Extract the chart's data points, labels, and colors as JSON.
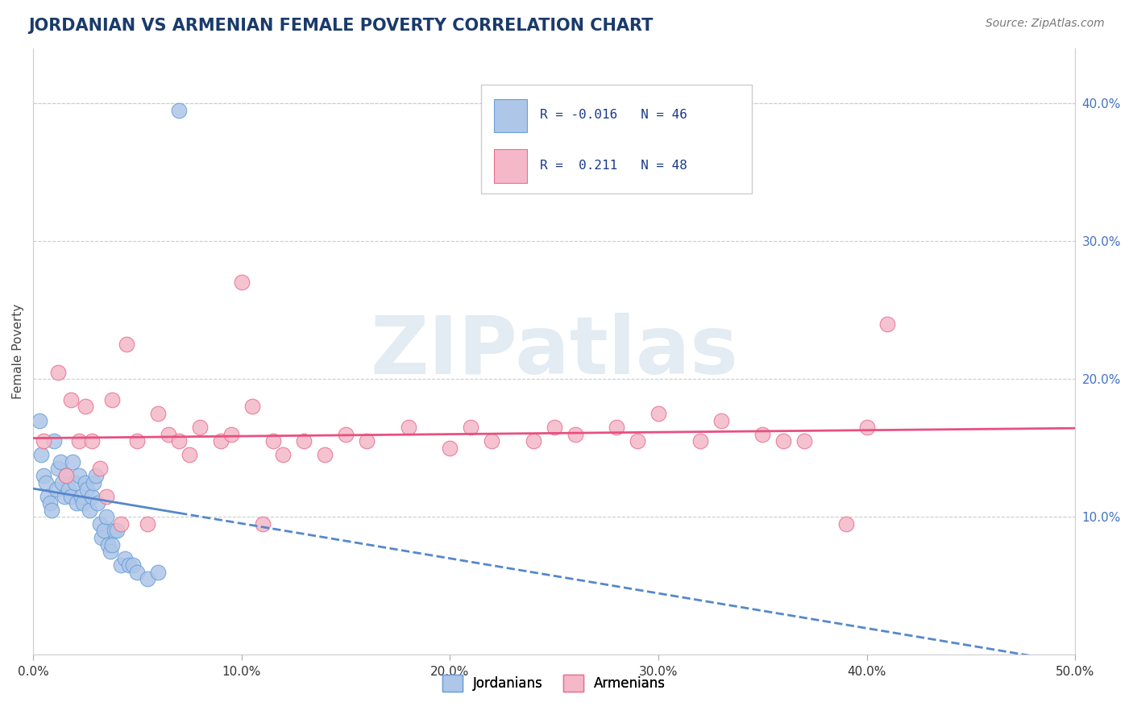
{
  "title": "JORDANIAN VS ARMENIAN FEMALE POVERTY CORRELATION CHART",
  "source_text": "Source: ZipAtlas.com",
  "ylabel": "Female Poverty",
  "xlim": [
    0.0,
    0.5
  ],
  "ylim": [
    0.0,
    0.44
  ],
  "xtick_vals": [
    0.0,
    0.1,
    0.2,
    0.3,
    0.4,
    0.5
  ],
  "xtick_labels": [
    "0.0%",
    "10.0%",
    "20.0%",
    "30.0%",
    "40.0%",
    "50.0%"
  ],
  "ytick_vals": [
    0.1,
    0.2,
    0.3,
    0.4
  ],
  "ytick_labels": [
    "10.0%",
    "20.0%",
    "30.0%",
    "40.0%"
  ],
  "background_color": "#ffffff",
  "watermark": "ZIPatlas",
  "watermark_color": "#c8d8e8",
  "title_color": "#1a3a6b",
  "title_fontsize": 15,
  "source_fontsize": 10,
  "source_color": "#777777",
  "jordanian_color": "#aec6e8",
  "armenian_color": "#f4b8c8",
  "jordanian_edge": "#6a9fd8",
  "armenian_edge": "#e87090",
  "trend_jordan_color": "#5588cc",
  "trend_armenia_color": "#e85080",
  "R_jordan": -0.016,
  "N_jordan": 46,
  "R_armenia": 0.211,
  "N_armenia": 48,
  "jordan_x": [
    0.003,
    0.004,
    0.005,
    0.006,
    0.007,
    0.008,
    0.009,
    0.01,
    0.011,
    0.012,
    0.013,
    0.014,
    0.015,
    0.016,
    0.017,
    0.018,
    0.019,
    0.02,
    0.021,
    0.022,
    0.023,
    0.024,
    0.025,
    0.026,
    0.027,
    0.028,
    0.029,
    0.03,
    0.031,
    0.032,
    0.033,
    0.034,
    0.035,
    0.036,
    0.037,
    0.038,
    0.039,
    0.04,
    0.042,
    0.044,
    0.046,
    0.048,
    0.05,
    0.055,
    0.06,
    0.07
  ],
  "jordan_y": [
    0.17,
    0.145,
    0.13,
    0.125,
    0.115,
    0.11,
    0.105,
    0.155,
    0.12,
    0.135,
    0.14,
    0.125,
    0.115,
    0.13,
    0.12,
    0.115,
    0.14,
    0.125,
    0.11,
    0.13,
    0.115,
    0.11,
    0.125,
    0.12,
    0.105,
    0.115,
    0.125,
    0.13,
    0.11,
    0.095,
    0.085,
    0.09,
    0.1,
    0.08,
    0.075,
    0.08,
    0.09,
    0.09,
    0.065,
    0.07,
    0.065,
    0.065,
    0.06,
    0.055,
    0.06,
    0.395
  ],
  "armenia_x": [
    0.005,
    0.012,
    0.016,
    0.018,
    0.022,
    0.025,
    0.028,
    0.032,
    0.035,
    0.038,
    0.042,
    0.045,
    0.05,
    0.055,
    0.06,
    0.065,
    0.07,
    0.075,
    0.08,
    0.09,
    0.095,
    0.1,
    0.105,
    0.11,
    0.115,
    0.12,
    0.13,
    0.14,
    0.15,
    0.16,
    0.18,
    0.2,
    0.21,
    0.22,
    0.24,
    0.25,
    0.26,
    0.28,
    0.29,
    0.3,
    0.32,
    0.33,
    0.35,
    0.36,
    0.37,
    0.39,
    0.4,
    0.41
  ],
  "armenia_y": [
    0.155,
    0.205,
    0.13,
    0.185,
    0.155,
    0.18,
    0.155,
    0.135,
    0.115,
    0.185,
    0.095,
    0.225,
    0.155,
    0.095,
    0.175,
    0.16,
    0.155,
    0.145,
    0.165,
    0.155,
    0.16,
    0.27,
    0.18,
    0.095,
    0.155,
    0.145,
    0.155,
    0.145,
    0.16,
    0.155,
    0.165,
    0.15,
    0.165,
    0.155,
    0.155,
    0.165,
    0.16,
    0.165,
    0.155,
    0.175,
    0.155,
    0.17,
    0.16,
    0.155,
    0.155,
    0.095,
    0.165,
    0.24
  ]
}
